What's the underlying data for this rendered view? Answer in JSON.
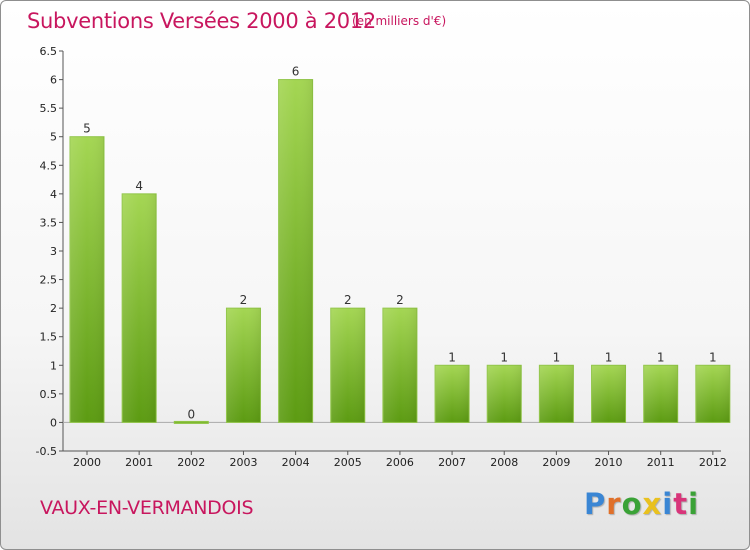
{
  "chart_data": {
    "type": "bar",
    "title": "Subventions Versées 2000 à 2012",
    "subtitle": "(en milliers d'€)",
    "xlabel": "",
    "ylabel": "",
    "categories": [
      "2000",
      "2001",
      "2002",
      "2003",
      "2004",
      "2005",
      "2006",
      "2007",
      "2008",
      "2009",
      "2010",
      "2011",
      "2012"
    ],
    "values": [
      5,
      4,
      0,
      2,
      6,
      2,
      2,
      1,
      1,
      1,
      1,
      1,
      1
    ],
    "data_labels": [
      "5",
      "4",
      "0",
      "2",
      "6",
      "2",
      "2",
      "1",
      "1",
      "1",
      "1",
      "1",
      "1"
    ],
    "ylim": [
      -0.5,
      6.5
    ],
    "yticks": [
      "-0.5",
      "0",
      "0.5",
      "1",
      "1.5",
      "2",
      "2.5",
      "3",
      "3.5",
      "4",
      "4.5",
      "5",
      "5.5",
      "6",
      "6.5"
    ],
    "grid": false,
    "bar_color_top": "#a4d653",
    "bar_color_bottom": "#5c9b12"
  },
  "footer": {
    "commune": "VAUX-EN-VERMANDOIS",
    "logo_text": "Proxiti",
    "logo_colors": [
      "#3a86d4",
      "#e0702a",
      "#3aa236",
      "#e9c11e",
      "#3a86d4",
      "#d8357a",
      "#3aa236"
    ]
  }
}
